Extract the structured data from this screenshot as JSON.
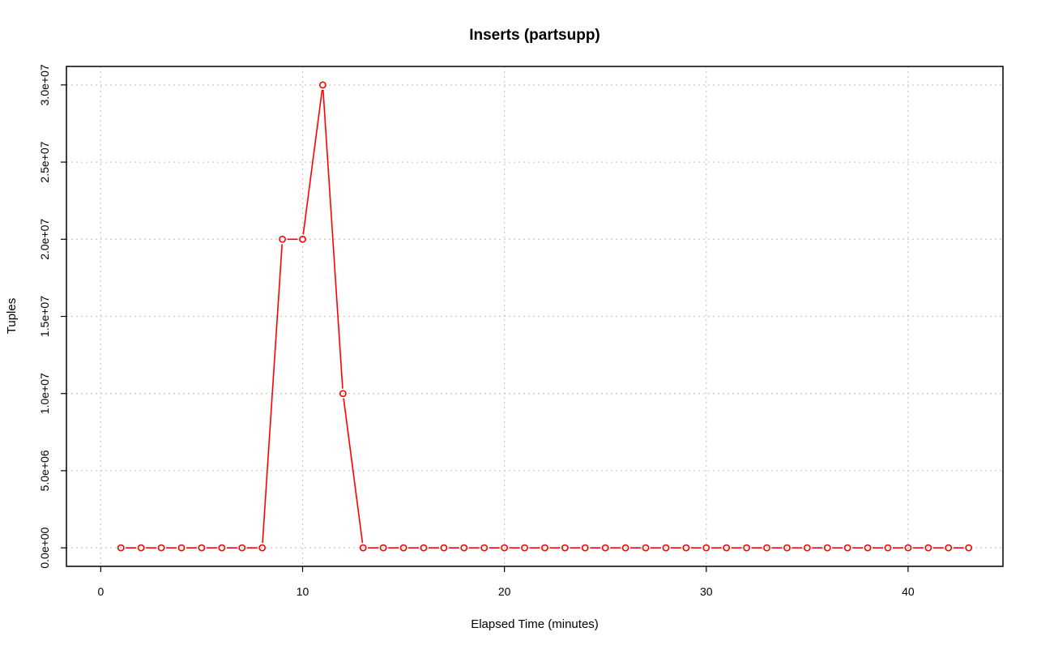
{
  "chart_data": {
    "type": "line",
    "title": "Inserts (partsupp)",
    "xlabel": "Elapsed Time (minutes)",
    "ylabel": "Tuples",
    "xlim": [
      -1.7,
      44.7
    ],
    "ylim": [
      -1200000,
      31200000
    ],
    "x_ticks": [
      0,
      10,
      20,
      30,
      40
    ],
    "x_tick_labels": [
      "0",
      "10",
      "20",
      "30",
      "40"
    ],
    "y_ticks": [
      0,
      5000000,
      10000000,
      15000000,
      20000000,
      25000000,
      30000000
    ],
    "y_tick_labels": [
      "0.0e+00",
      "5.0e+06",
      "1.0e+07",
      "1.5e+07",
      "2.0e+07",
      "2.5e+07",
      "3.0e+07"
    ],
    "grid": true,
    "color": "#ff0000",
    "marker": "open-circle",
    "series": [
      {
        "x": [
          1,
          2,
          3,
          4,
          5,
          6,
          7,
          8,
          9,
          10,
          11,
          12,
          13,
          14,
          15,
          16,
          17,
          18,
          19,
          20,
          21,
          22,
          23,
          24,
          25,
          26,
          27,
          28,
          29,
          30,
          31,
          32,
          33,
          34,
          35,
          36,
          37,
          38,
          39,
          40,
          41,
          42,
          43
        ],
        "values": [
          0,
          0,
          0,
          0,
          0,
          0,
          0,
          0,
          20000000,
          20000000,
          30000000,
          10000000,
          0,
          0,
          0,
          0,
          0,
          0,
          0,
          0,
          0,
          0,
          0,
          0,
          0,
          0,
          0,
          0,
          0,
          0,
          0,
          0,
          0,
          0,
          0,
          0,
          0,
          0,
          0,
          0,
          0,
          0,
          0
        ]
      }
    ]
  }
}
